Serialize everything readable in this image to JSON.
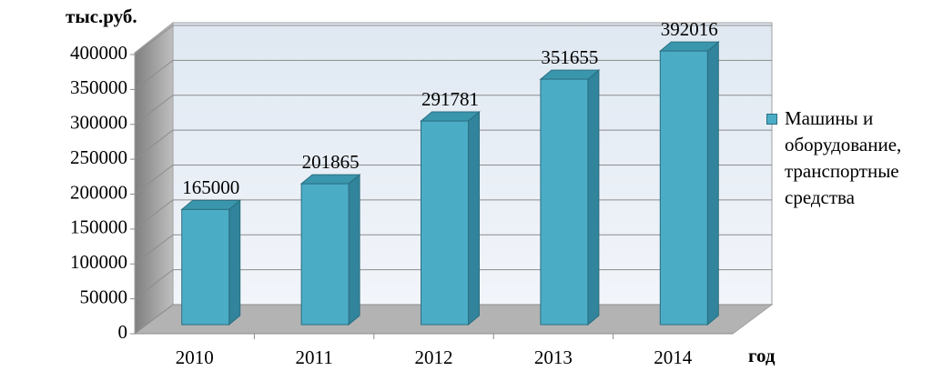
{
  "chart_data": {
    "type": "bar3d",
    "y_label": "тыс.руб.",
    "x_label": "год",
    "categories": [
      "2010",
      "2011",
      "2012",
      "2013",
      "2014"
    ],
    "series": [
      {
        "name": "Машины и оборудование, транспортные средства",
        "color": "#4bacc6",
        "values": [
          165000,
          201865,
          291781,
          351655,
          392016
        ]
      }
    ],
    "ylim": [
      0,
      400000
    ],
    "yticks": [
      0,
      50000,
      100000,
      150000,
      200000,
      250000,
      300000,
      350000,
      400000
    ],
    "grid": true,
    "legend": "right"
  }
}
